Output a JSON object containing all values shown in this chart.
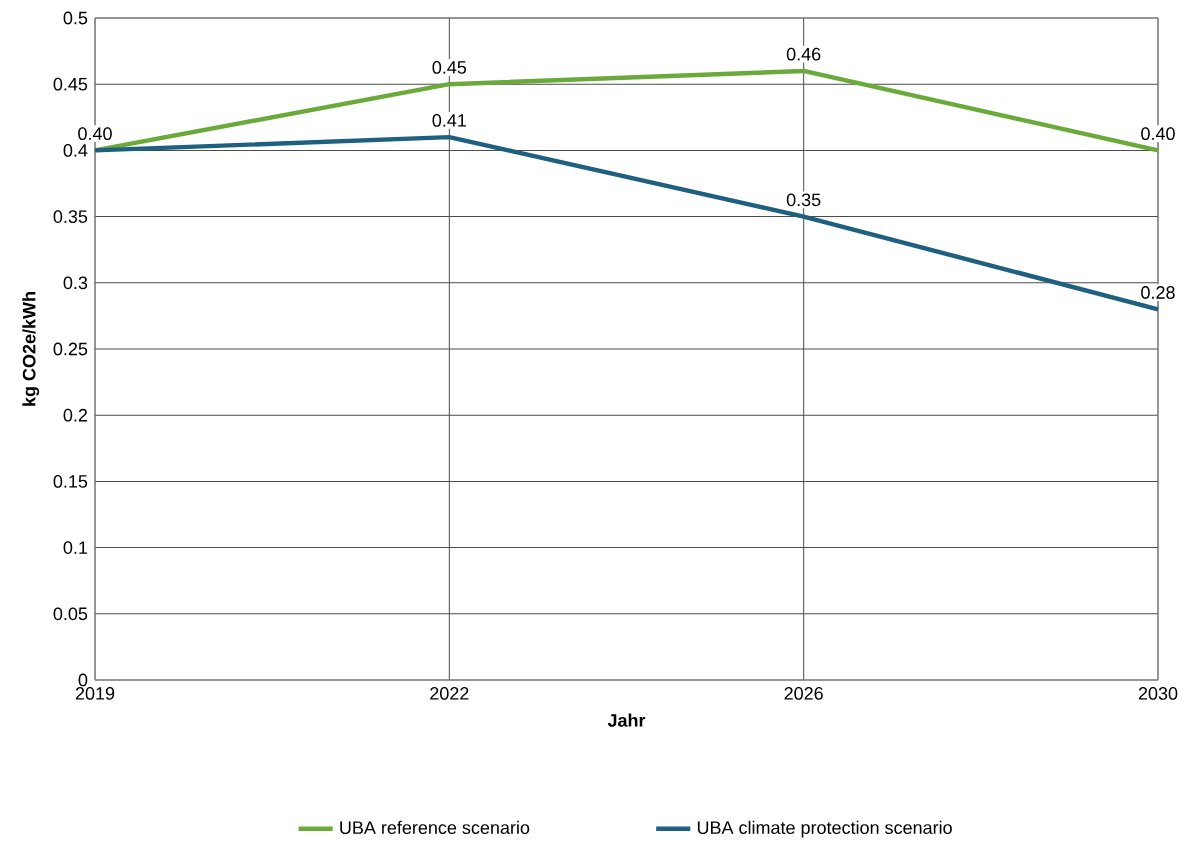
{
  "chart_data": {
    "type": "line",
    "xlabel": "Jahr",
    "ylabel": "kg CO2e/kWh",
    "categories": [
      "2019",
      "2022",
      "2026",
      "2030"
    ],
    "series": [
      {
        "name": "UBA reference scenario",
        "color": "#6aaa3a",
        "values": [
          0.4,
          0.45,
          0.46,
          0.4
        ],
        "value_labels": [
          "0.40",
          "0.45",
          "0.46",
          "0.40"
        ]
      },
      {
        "name": "UBA climate protection scenario",
        "color": "#1f5f7f",
        "values": [
          0.4,
          0.41,
          0.35,
          0.28
        ],
        "value_labels": [
          null,
          "0.41",
          "0.35",
          "0.28"
        ]
      }
    ],
    "ylim": [
      0,
      0.5
    ],
    "yticks": [
      0,
      0.05,
      0.1,
      0.15,
      0.2,
      0.25,
      0.3,
      0.35,
      0.4,
      0.45,
      0.5
    ],
    "grid": true,
    "legend": "bottom",
    "marker": "none",
    "line_style": "solid"
  }
}
